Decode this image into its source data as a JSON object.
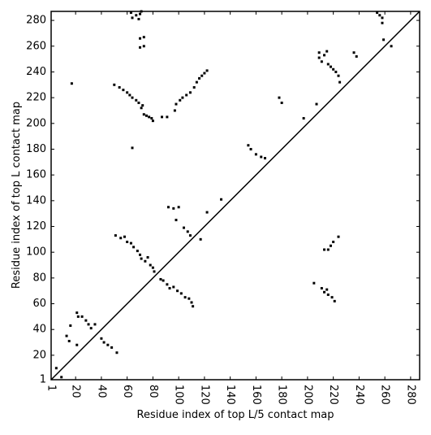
{
  "chart_data": {
    "type": "scatter",
    "xlabel": "Residue index of top L/5 contact map",
    "ylabel": "Residue index of top L contact map",
    "xlim": [
      1,
      287
    ],
    "ylim": [
      1,
      287
    ],
    "xticks": [
      1,
      20,
      40,
      60,
      80,
      100,
      120,
      140,
      160,
      180,
      200,
      220,
      240,
      260,
      280
    ],
    "yticks": [
      1,
      20,
      40,
      60,
      80,
      100,
      120,
      140,
      160,
      180,
      200,
      220,
      240,
      260,
      280
    ],
    "color": "#000000",
    "x": [
      63,
      64,
      67,
      69,
      70,
      71,
      70,
      73,
      70,
      73,
      17,
      50,
      54,
      57,
      60,
      62,
      64,
      67,
      69,
      72,
      71,
      73,
      75,
      77,
      79,
      80,
      87,
      91,
      97,
      98,
      101,
      103,
      106,
      109,
      112,
      114,
      116,
      118,
      120,
      122,
      64,
      154,
      156,
      160,
      164,
      167,
      178,
      180,
      197,
      207,
      209,
      209,
      211,
      213,
      215,
      216,
      218,
      220,
      222,
      224,
      225,
      236,
      238,
      254,
      256,
      258,
      258,
      259,
      265,
      92,
      96,
      100,
      98,
      133,
      5,
      9,
      13,
      15,
      16,
      21,
      21,
      22,
      25,
      28,
      30,
      32,
      35,
      40,
      42,
      45,
      48,
      52,
      51,
      55,
      58,
      60,
      63,
      65,
      68,
      70,
      71,
      74,
      76,
      78,
      80,
      81,
      86,
      88,
      91,
      93,
      96,
      99,
      102,
      105,
      108,
      110,
      111,
      104,
      107,
      109,
      117,
      122,
      205,
      211,
      213,
      215,
      216,
      219,
      221,
      213,
      216,
      218,
      220,
      224
    ],
    "y": [
      286,
      282,
      284,
      281,
      285,
      287,
      266,
      267,
      259,
      260,
      231,
      230,
      228,
      226,
      224,
      222,
      220,
      218,
      216,
      214,
      212,
      207,
      206,
      205,
      204,
      202,
      205,
      205,
      210,
      215,
      218,
      220,
      222,
      224,
      228,
      232,
      235,
      237,
      239,
      241,
      181,
      183,
      180,
      176,
      174,
      173,
      220,
      216,
      204,
      215,
      255,
      251,
      248,
      253,
      256,
      246,
      244,
      242,
      240,
      237,
      232,
      255,
      252,
      286,
      284,
      282,
      278,
      265,
      260,
      135,
      134,
      135,
      125,
      141,
      10,
      3,
      35,
      31,
      43,
      28,
      53,
      50,
      50,
      47,
      44,
      41,
      44,
      33,
      30,
      28,
      26,
      22,
      113,
      111,
      112,
      108,
      107,
      104,
      101,
      98,
      95,
      93,
      96,
      90,
      88,
      85,
      79,
      78,
      75,
      72,
      73,
      70,
      68,
      65,
      64,
      61,
      58,
      119,
      116,
      113,
      110,
      131,
      76,
      72,
      69,
      71,
      67,
      65,
      62,
      102,
      102,
      105,
      108,
      112
    ]
  }
}
